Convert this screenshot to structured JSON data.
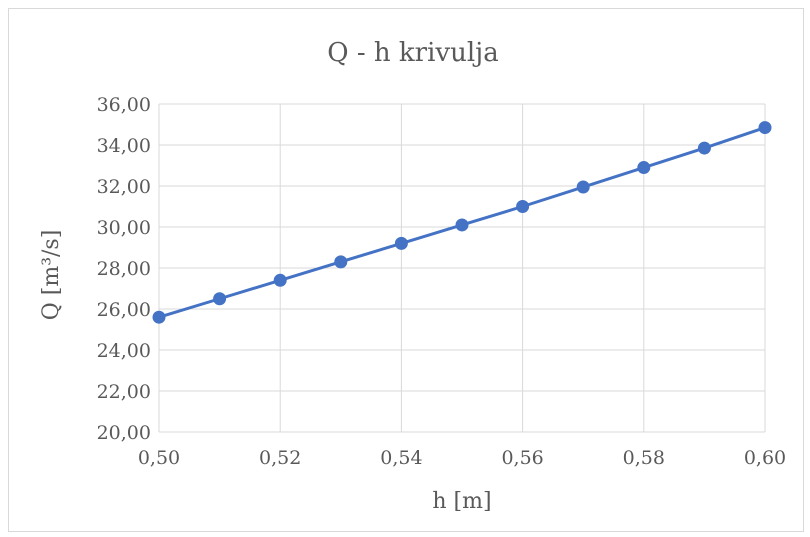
{
  "chart_data": {
    "type": "line",
    "title": "Q - h krivulja",
    "xlabel": "h [m]",
    "ylabel": "Q [m³/s]",
    "xlim": [
      0.5,
      0.6
    ],
    "ylim": [
      20,
      36
    ],
    "xticks": [
      "0,50",
      "0,52",
      "0,54",
      "0,56",
      "0,58",
      "0,60"
    ],
    "yticks": [
      "20,00",
      "22,00",
      "24,00",
      "26,00",
      "28,00",
      "30,00",
      "32,00",
      "34,00",
      "36,00"
    ],
    "grid": true,
    "legend": "none",
    "series": [
      {
        "color": "#4472c4",
        "x": [
          0.5,
          0.51,
          0.52,
          0.53,
          0.54,
          0.55,
          0.56,
          0.57,
          0.58,
          0.59,
          0.6
        ],
        "y": [
          25.6,
          26.5,
          27.4,
          28.3,
          29.2,
          30.1,
          31.0,
          31.95,
          32.9,
          33.85,
          34.85
        ]
      }
    ]
  }
}
